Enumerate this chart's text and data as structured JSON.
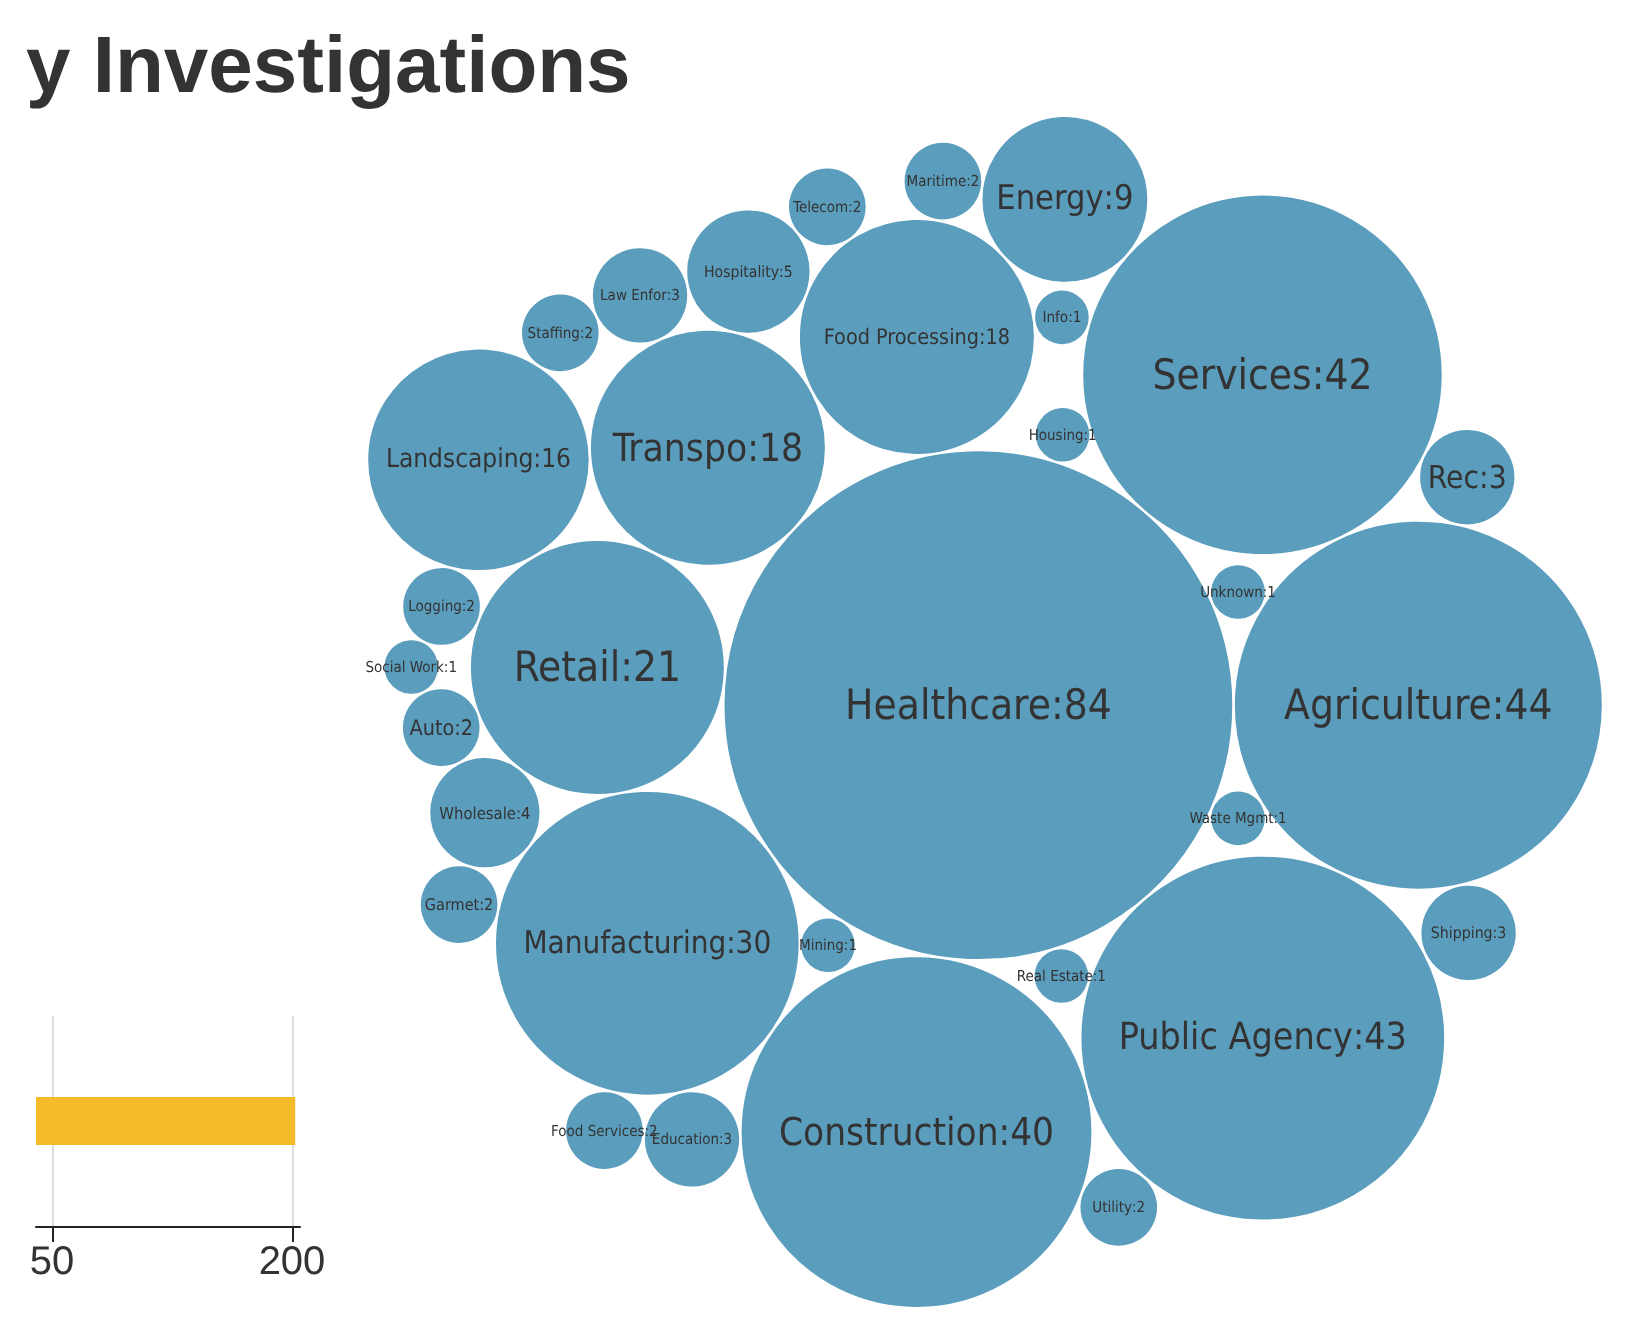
{
  "chart_data": [
    {
      "type": "bar",
      "orientation": "horizontal",
      "categories": [
        null
      ],
      "values": [
        202
      ],
      "color": "#f6bb2a",
      "xlim": [
        40,
        205
      ],
      "xticks": [
        50,
        200
      ],
      "grid": "x"
    },
    {
      "type": "other",
      "title": "y Investigations",
      "color": "#5b9dbd",
      "values": [
        84,
        44,
        43,
        42,
        40,
        30,
        21,
        18,
        18,
        16,
        9,
        5,
        4,
        3,
        3,
        3,
        3,
        2,
        2,
        2,
        2,
        2,
        2,
        2,
        2,
        1,
        1,
        1,
        1,
        1,
        1,
        1
      ],
      "value_labels": [
        ":84",
        ":44",
        ":43",
        ":42",
        ":40",
        ":30",
        ":21",
        ":18",
        ":18",
        ":16",
        ":9",
        ":5",
        ":4",
        ":3",
        ":3",
        ":3",
        ":3",
        ":2",
        ":2",
        ":2",
        ":2",
        ":2",
        ":2",
        ":2",
        ":2",
        ":1",
        ":1",
        ":1",
        ":1",
        ":1",
        ":1",
        ":1"
      ],
      "categories": [
        "Healthcare",
        "Agriculture",
        "Public Agency",
        "Services",
        "Construction",
        "Manufacturing",
        "Retail",
        "Transpo",
        "Food Processing",
        "Landscaping",
        "Energy",
        "Hospitality",
        "Wholesale",
        "Education",
        "Rec",
        "Law Enfor",
        "Shipping",
        "Auto",
        "Telecom",
        "Utility",
        "Maritime",
        "Logging",
        "Garmet",
        "Staffing",
        "Food Services",
        "Waste Mgmt",
        "Unknown",
        "Mining",
        "Housing",
        "Real Estate",
        "Info",
        "Social Work"
      ]
    }
  ]
}
